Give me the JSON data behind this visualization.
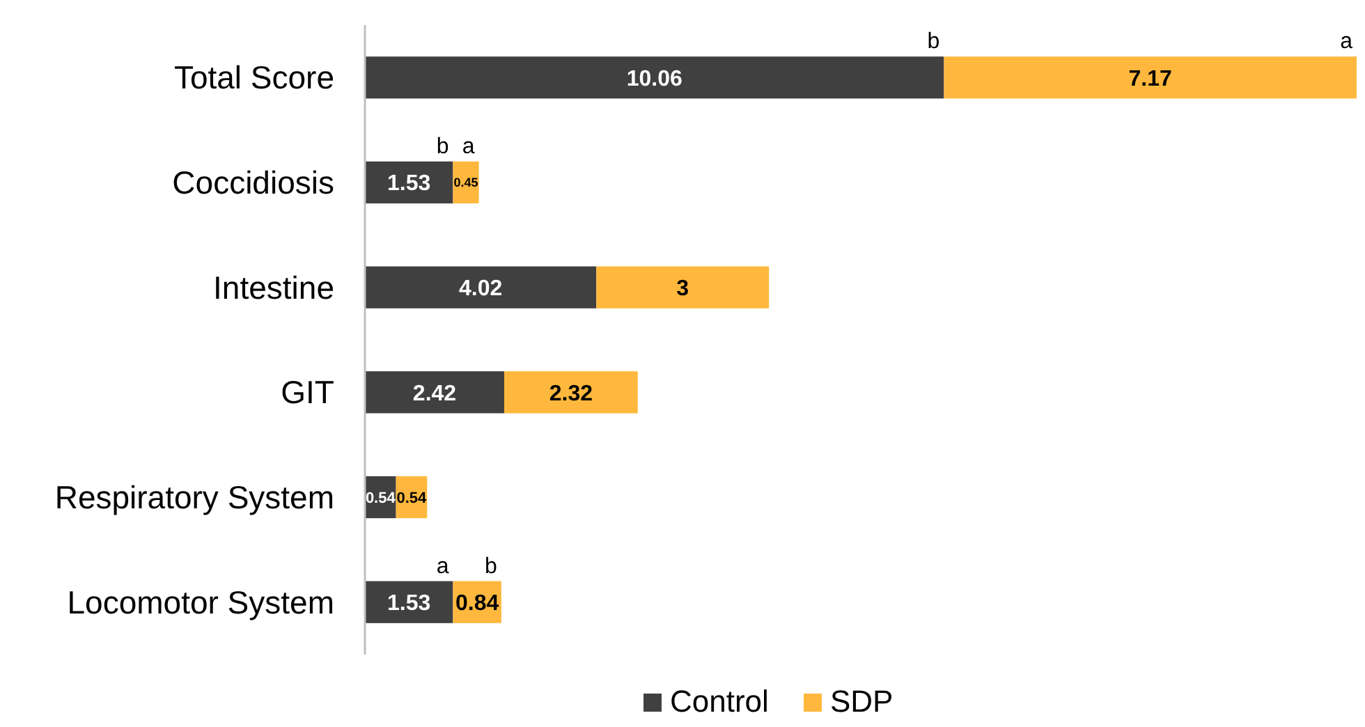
{
  "chart_data": {
    "type": "bar",
    "orientation": "horizontal",
    "stacked": true,
    "data_labels": true,
    "legend": "bottom",
    "categories": [
      "Total Score",
      "Coccidiosis",
      "Intestine",
      "GIT",
      "Respiratory System",
      "Locomotor System"
    ],
    "series": [
      {
        "name": "Control",
        "color": "#404040",
        "values": [
          10.06,
          1.53,
          4.02,
          2.42,
          0.54,
          1.53
        ]
      },
      {
        "name": "SDP",
        "color": "#ffb83d",
        "values": [
          7.17,
          0.45,
          3,
          2.32,
          0.54,
          0.84
        ]
      }
    ],
    "annotations": [
      {
        "text": "b",
        "x": 10.06,
        "y": "Total Score"
      },
      {
        "text": "a",
        "x": 17.23,
        "y": "Total Score"
      },
      {
        "text": "b",
        "x": 1.53,
        "y": "Coccidiosis"
      },
      {
        "text": "a",
        "x": 1.98,
        "y": "Coccidiosis"
      },
      {
        "text": "a",
        "x": 1.53,
        "y": "Locomotor System"
      },
      {
        "text": "b",
        "x": 2.37,
        "y": "Locomotor System"
      }
    ]
  }
}
